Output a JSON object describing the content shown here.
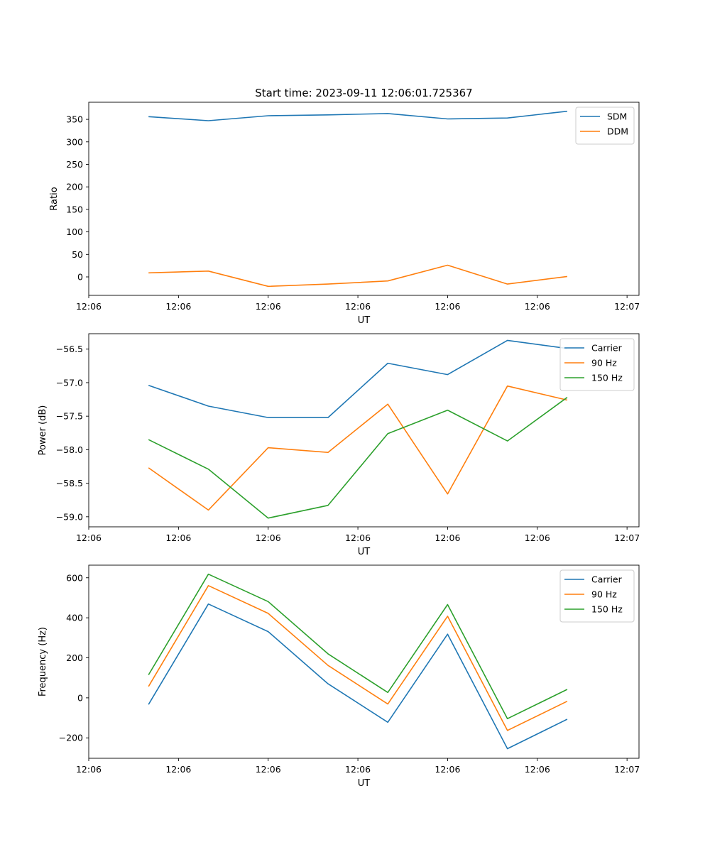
{
  "figure_title": "Start time: 2023-09-11 12:06:01.725367",
  "colors": {
    "blue": "#1f77b4",
    "orange": "#ff7f0e",
    "green": "#2ca02c"
  },
  "chart_data": [
    {
      "type": "line",
      "title": "Start time: 2023-09-11 12:06:01.725367",
      "xlabel": "UT",
      "ylabel": "Ratio",
      "legend_position": "top-right",
      "x_index": [
        1,
        2,
        3,
        4,
        5,
        6,
        7,
        8
      ],
      "xlim": [
        0,
        9.2
      ],
      "x_ticks": [
        0,
        1.5,
        3,
        4.5,
        6,
        7.5,
        9
      ],
      "x_tick_labels": [
        "12:06",
        "12:06",
        "12:06",
        "12:06",
        "12:06",
        "12:06",
        "12:07"
      ],
      "ylim": [
        -41,
        388
      ],
      "y_ticks": [
        0,
        50,
        100,
        150,
        200,
        250,
        300,
        350
      ],
      "y_tick_labels": [
        "0",
        "50",
        "100",
        "150",
        "200",
        "250",
        "300",
        "350"
      ],
      "series": [
        {
          "name": "SDM",
          "color": "#1f77b4",
          "values": [
            356,
            347,
            358,
            360,
            363,
            351,
            353,
            368
          ]
        },
        {
          "name": "DDM",
          "color": "#ff7f0e",
          "values": [
            9,
            13,
            -21,
            -16,
            -9,
            26,
            -16,
            1
          ]
        }
      ]
    },
    {
      "type": "line",
      "title": "",
      "xlabel": "UT",
      "ylabel": "Power (dB)",
      "legend_position": "top-right",
      "x_index": [
        1,
        2,
        3,
        4,
        5,
        6,
        7,
        8
      ],
      "xlim": [
        0,
        9.2
      ],
      "x_ticks": [
        0,
        1.5,
        3,
        4.5,
        6,
        7.5,
        9
      ],
      "x_tick_labels": [
        "12:06",
        "12:06",
        "12:06",
        "12:06",
        "12:06",
        "12:06",
        "12:07"
      ],
      "ylim": [
        -59.15,
        -56.27
      ],
      "y_ticks": [
        -59.0,
        -58.5,
        -58.0,
        -57.5,
        -57.0,
        -56.5
      ],
      "y_tick_labels": [
        "−59.0",
        "−58.5",
        "−58.0",
        "−57.5",
        "−57.0",
        "−56.5"
      ],
      "series": [
        {
          "name": "Carrier",
          "color": "#1f77b4",
          "values": [
            -57.04,
            -57.35,
            -57.52,
            -57.52,
            -56.71,
            -56.88,
            -56.37,
            -56.49
          ]
        },
        {
          "name": "90 Hz",
          "color": "#ff7f0e",
          "values": [
            -58.27,
            -58.9,
            -57.97,
            -58.04,
            -57.32,
            -58.66,
            -57.05,
            -57.26
          ]
        },
        {
          "name": "150 Hz",
          "color": "#2ca02c",
          "values": [
            -57.85,
            -58.29,
            -59.02,
            -58.83,
            -57.76,
            -57.41,
            -57.87,
            -57.22
          ]
        }
      ]
    },
    {
      "type": "line",
      "title": "",
      "xlabel": "UT",
      "ylabel": "Frequency (Hz)",
      "legend_position": "top-right",
      "x_index": [
        1,
        2,
        3,
        4,
        5,
        6,
        7,
        8
      ],
      "xlim": [
        0,
        9.2
      ],
      "x_ticks": [
        0,
        1.5,
        3,
        4.5,
        6,
        7.5,
        9
      ],
      "x_tick_labels": [
        "12:06",
        "12:06",
        "12:06",
        "12:06",
        "12:06",
        "12:06",
        "12:07"
      ],
      "ylim": [
        -302,
        663
      ],
      "y_ticks": [
        -200,
        0,
        200,
        400,
        600
      ],
      "y_tick_labels": [
        "−200",
        "0",
        "200",
        "400",
        "600"
      ],
      "series": [
        {
          "name": "Carrier",
          "color": "#1f77b4",
          "values": [
            -33,
            469,
            331,
            70,
            -122,
            318,
            -254,
            -107
          ]
        },
        {
          "name": "90 Hz",
          "color": "#ff7f0e",
          "values": [
            57,
            561,
            422,
            162,
            -31,
            408,
            -163,
            -17
          ]
        },
        {
          "name": "150 Hz",
          "color": "#2ca02c",
          "values": [
            115,
            618,
            481,
            220,
            27,
            466,
            -104,
            42
          ]
        }
      ]
    }
  ]
}
